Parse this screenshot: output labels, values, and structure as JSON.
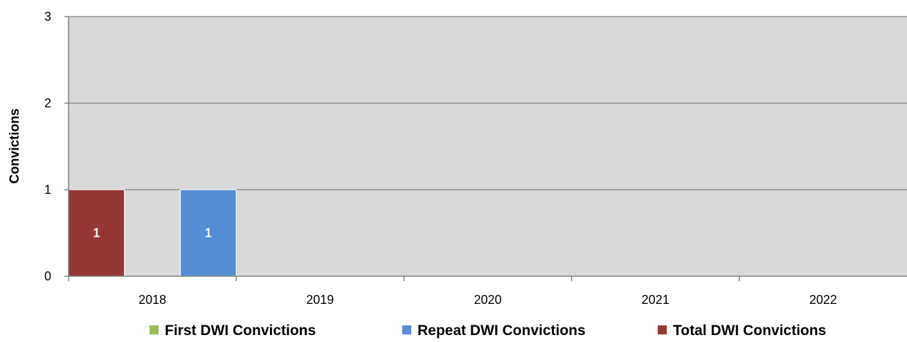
{
  "chart_data": {
    "type": "bar",
    "categories": [
      "2018",
      "2019",
      "2020",
      "2021",
      "2022"
    ],
    "series": [
      {
        "name": "First DWI Convictions",
        "color": "#9bbb59",
        "values": [
          0,
          0,
          0,
          0,
          0
        ]
      },
      {
        "name": "Repeat DWI Convictions",
        "color": "#558ed5",
        "values": [
          1,
          0,
          0,
          0,
          0
        ]
      },
      {
        "name": "Total DWI Convictions",
        "color": "#953735",
        "values": [
          1,
          0,
          0,
          0,
          0
        ]
      }
    ],
    "draw_order": [
      "Total DWI Convictions",
      "First DWI Convictions",
      "Repeat DWI Convictions"
    ],
    "data_labels": [
      {
        "series": "Total DWI Convictions",
        "category": "2018",
        "text": "1"
      },
      {
        "series": "Repeat DWI Convictions",
        "category": "2018",
        "text": "1"
      }
    ],
    "yticks": [
      "0",
      "1",
      "2",
      "3"
    ],
    "ylim": [
      0,
      3
    ],
    "ylabel": "Convictions",
    "xlabel": "",
    "title": "",
    "grid": true,
    "plot_background": "#d9d9d9",
    "legend_position": "bottom"
  }
}
